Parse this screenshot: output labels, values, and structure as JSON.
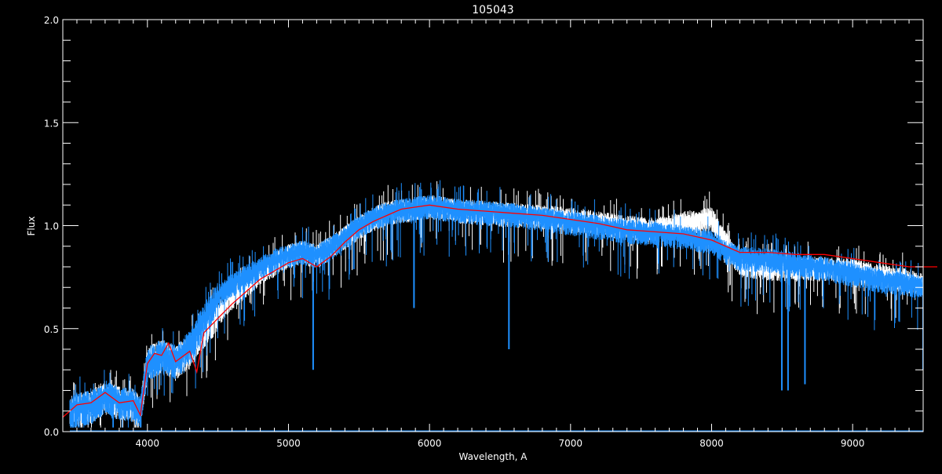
{
  "chart_data": {
    "type": "line",
    "title": "105043",
    "xlabel": "Wavelength, A",
    "ylabel": "Flux",
    "xlim": [
      3400,
      9500
    ],
    "ylim": [
      0,
      2.0
    ],
    "x_ticks": [
      "4000",
      "5000",
      "6000",
      "7000",
      "8000",
      "9000"
    ],
    "y_ticks": [
      "0.0",
      "0.5",
      "1.0",
      "1.5",
      "2.0"
    ],
    "grid": false,
    "background": "#000000",
    "series": [
      {
        "color": "#ffffff",
        "x": [
          3450,
          3500,
          3600,
          3700,
          3800,
          3900,
          3950,
          4000,
          4100,
          4200,
          4300,
          4400,
          4500,
          4600,
          4700,
          4800,
          4900,
          5000,
          5100,
          5200,
          5300,
          5400,
          5500,
          5600,
          5700,
          5800,
          5900,
          6000,
          6200,
          6400,
          6600,
          6800,
          7000,
          7200,
          7400,
          7600,
          7700,
          7800,
          7900,
          8000,
          8100,
          8200,
          8400,
          8600,
          8800,
          9000,
          9200,
          9400,
          9500
        ],
        "y": [
          0.1,
          0.12,
          0.13,
          0.18,
          0.15,
          0.14,
          0.1,
          0.34,
          0.38,
          0.35,
          0.4,
          0.5,
          0.58,
          0.66,
          0.72,
          0.78,
          0.82,
          0.86,
          0.88,
          0.86,
          0.9,
          0.95,
          1.0,
          1.04,
          1.07,
          1.08,
          1.09,
          1.1,
          1.08,
          1.07,
          1.06,
          1.05,
          1.04,
          1.02,
          1.0,
          0.99,
          1.0,
          1.02,
          1.03,
          1.04,
          0.92,
          0.82,
          0.8,
          0.8,
          0.8,
          0.79,
          0.76,
          0.74,
          0.72
        ]
      },
      {
        "color": "#1e90ff",
        "x": [
          3450,
          3500,
          3600,
          3700,
          3800,
          3900,
          3950,
          4000,
          4100,
          4200,
          4300,
          4400,
          4500,
          4600,
          4700,
          4800,
          4900,
          5000,
          5100,
          5200,
          5300,
          5400,
          5500,
          5600,
          5700,
          5800,
          5900,
          6000,
          6200,
          6400,
          6600,
          6800,
          7000,
          7200,
          7400,
          7600,
          7700,
          7800,
          7900,
          8000,
          8100,
          8200,
          8400,
          8600,
          8800,
          9000,
          9200,
          9400,
          9500
        ],
        "y": [
          0.1,
          0.12,
          0.13,
          0.18,
          0.15,
          0.14,
          0.1,
          0.34,
          0.38,
          0.35,
          0.42,
          0.55,
          0.66,
          0.72,
          0.76,
          0.8,
          0.84,
          0.86,
          0.88,
          0.86,
          0.9,
          0.95,
          1.0,
          1.04,
          1.07,
          1.08,
          1.09,
          1.1,
          1.08,
          1.07,
          1.06,
          1.04,
          1.02,
          1.0,
          0.98,
          0.97,
          0.96,
          0.95,
          0.94,
          0.93,
          0.88,
          0.85,
          0.84,
          0.82,
          0.8,
          0.77,
          0.74,
          0.72,
          0.7
        ],
        "absorption_lines": [
          [
            5175,
            0.3
          ],
          [
            5890,
            0.6
          ],
          [
            6563,
            0.4
          ],
          [
            8498,
            0.2
          ],
          [
            8542,
            0.2
          ],
          [
            8662,
            0.23
          ],
          [
            9500,
            0.3
          ]
        ]
      },
      {
        "color": "#ff0000",
        "x": [
          3400,
          3500,
          3600,
          3700,
          3800,
          3900,
          3950,
          4000,
          4050,
          4100,
          4150,
          4200,
          4300,
          4350,
          4400,
          4500,
          4600,
          4700,
          4800,
          4900,
          5000,
          5100,
          5200,
          5300,
          5400,
          5500,
          5600,
          5700,
          5800,
          5900,
          6000,
          6200,
          6400,
          6600,
          6800,
          7000,
          7200,
          7400,
          7600,
          7800,
          8000,
          8200,
          8400,
          8600,
          8800,
          9000,
          9200,
          9400,
          9500,
          9600
        ],
        "y": [
          0.07,
          0.13,
          0.14,
          0.19,
          0.14,
          0.15,
          0.08,
          0.33,
          0.38,
          0.37,
          0.43,
          0.34,
          0.39,
          0.29,
          0.48,
          0.55,
          0.62,
          0.68,
          0.74,
          0.78,
          0.82,
          0.84,
          0.8,
          0.85,
          0.92,
          0.98,
          1.02,
          1.05,
          1.08,
          1.09,
          1.1,
          1.08,
          1.07,
          1.06,
          1.05,
          1.03,
          1.01,
          0.98,
          0.97,
          0.96,
          0.93,
          0.87,
          0.87,
          0.86,
          0.86,
          0.84,
          0.82,
          0.8,
          0.8,
          0.8
        ]
      }
    ]
  }
}
